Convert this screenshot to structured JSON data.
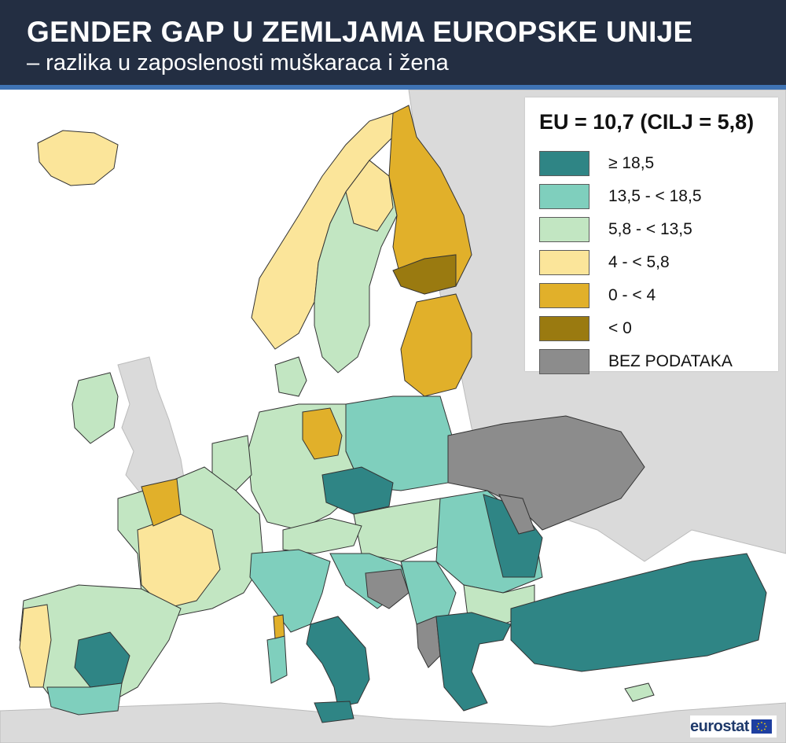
{
  "header": {
    "title": "GENDER GAP U ZEMLJAMA EUROPSKE UNIJE",
    "subtitle": "– razlika u zaposlenosti muškaraca i žena"
  },
  "legend": {
    "title": "EU = 10,7 (CILJ = 5,8)",
    "items": [
      {
        "label": "≥ 18,5",
        "color": "#2f8585"
      },
      {
        "label": "13,5 - < 18,5",
        "color": "#7fcfbd"
      },
      {
        "label": "5,8 - < 13,5",
        "color": "#c2e6c2"
      },
      {
        "label": "4 - < 5,8",
        "color": "#fbe59a"
      },
      {
        "label": "0 - < 4",
        "color": "#e1b02a"
      },
      {
        "label": "< 0",
        "color": "#9a7a10"
      },
      {
        "label": "BEZ PODATAKA",
        "color": "#8c8c8c"
      }
    ]
  },
  "map_colors": {
    "non_eu_land": "#dadada",
    "sea": "#ffffff",
    "border": "#333333"
  },
  "regions": [
    {
      "name": "iceland",
      "class": "4 - < 5,8"
    },
    {
      "name": "norway",
      "class": "4 - < 5,8"
    },
    {
      "name": "sweden",
      "class": "5,8 - < 13,5"
    },
    {
      "name": "finland",
      "class": "0 - < 4"
    },
    {
      "name": "baltics",
      "class": "0 - < 4"
    },
    {
      "name": "ireland",
      "class": "5,8 - < 13,5"
    },
    {
      "name": "france",
      "class": "5,8 - < 13,5"
    },
    {
      "name": "iberia",
      "class": "5,8 - < 13,5"
    },
    {
      "name": "italy",
      "class": "13,5 - < 18,5"
    },
    {
      "name": "southern-italy",
      "class": "≥ 18,5"
    },
    {
      "name": "germany",
      "class": "5,8 - < 13,5"
    },
    {
      "name": "poland",
      "class": "13,5 - < 18,5"
    },
    {
      "name": "czechia",
      "class": "≥ 18,5"
    },
    {
      "name": "romania",
      "class": "13,5 - < 18,5"
    },
    {
      "name": "greece",
      "class": "≥ 18,5"
    },
    {
      "name": "turkey",
      "class": "≥ 18,5"
    },
    {
      "name": "ukraine",
      "class": "BEZ PODATAKA"
    },
    {
      "name": "bosnia",
      "class": "BEZ PODATAKA"
    }
  ],
  "logo": {
    "text": "eurostat"
  }
}
